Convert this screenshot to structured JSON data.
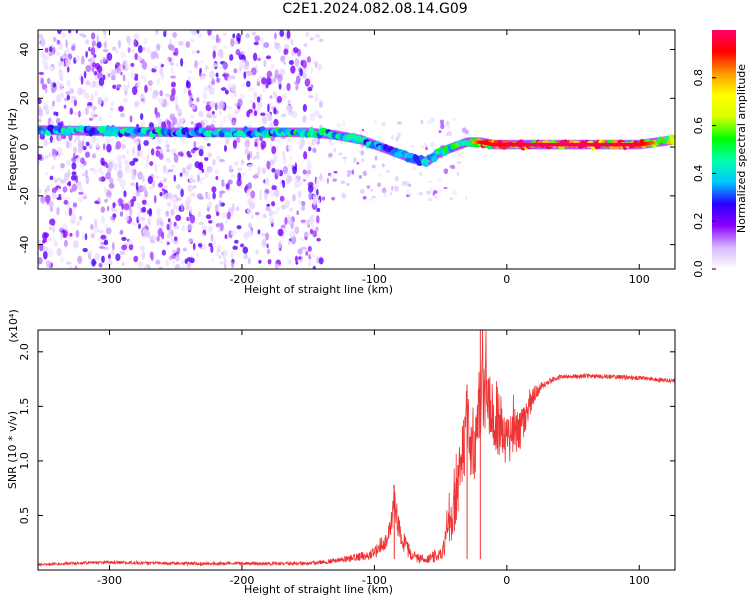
{
  "title": "C2E1.2024.082.08.14.G09",
  "chart_data": [
    {
      "type": "heatmap",
      "xlabel": "Height of straight line (km)",
      "ylabel": "Frequency (Hz)",
      "xlim": [
        -354,
        127
      ],
      "ylim": [
        -50,
        48
      ],
      "xticks": [
        -300,
        -200,
        -100,
        0,
        100
      ],
      "yticks": [
        -40,
        -20,
        0,
        20,
        40
      ],
      "grid": false,
      "colorbar": {
        "label": "Normalized spectral amplitude",
        "range": [
          0,
          1
        ],
        "ticks": [
          "0.0",
          "0.2",
          "0.4",
          "0.6",
          "0.8"
        ],
        "colors": [
          "#ffffff",
          "#d7b8ff",
          "#8a00ff",
          "#2a00ff",
          "#00c8ff",
          "#00ffaa",
          "#00ff00",
          "#d8ff00",
          "#ffff00",
          "#ff9900",
          "#ff0000",
          "#ff0066"
        ]
      },
      "ridge": {
        "x": [
          -354,
          -300,
          -250,
          -200,
          -150,
          -130,
          -110,
          -90,
          -80,
          -70,
          -60,
          -50,
          -40,
          -30,
          -20,
          -10,
          0,
          20,
          50,
          100,
          127
        ],
        "frequency": [
          7,
          6.5,
          6,
          6,
          6,
          5,
          3,
          -1,
          -3,
          -5,
          -6,
          -2,
          0,
          2,
          2,
          1,
          1,
          1,
          1,
          1,
          3
        ],
        "amplitude": [
          0.45,
          0.45,
          0.45,
          0.45,
          0.5,
          0.5,
          0.45,
          0.35,
          0.4,
          0.45,
          0.5,
          0.55,
          0.6,
          0.7,
          0.9,
          0.95,
          0.95,
          0.98,
          1.0,
          0.95,
          0.7
        ]
      },
      "scatter_extent": {
        "x_from": -354,
        "x_to": -140,
        "frequency_range": [
          -50,
          48
        ]
      }
    },
    {
      "type": "line",
      "xlabel": "Height of straight line (km)",
      "ylabel": "SNR (10 * v/v)",
      "multiplier": "(x10⁴)",
      "xlim": [
        -354,
        127
      ],
      "ylim": [
        0,
        2.2
      ],
      "xticks": [
        -300,
        -200,
        -100,
        0,
        100
      ],
      "yticks": [
        0.5,
        1.0,
        1.5,
        2.0
      ],
      "color": "#ee3333",
      "series": [
        {
          "x": [
            -354,
            -300,
            -250,
            -200,
            -150,
            -120,
            -100,
            -90,
            -85,
            -80,
            -75,
            -70,
            -60,
            -50,
            -40,
            -35,
            -30,
            -25,
            -20,
            -15,
            -10,
            -5,
            0,
            10,
            20,
            30,
            40,
            60,
            80,
            100,
            127
          ],
          "values": [
            0.05,
            0.07,
            0.06,
            0.06,
            0.06,
            0.1,
            0.15,
            0.3,
            0.6,
            0.3,
            0.2,
            0.12,
            0.1,
            0.15,
            0.5,
            0.9,
            1.3,
            1.1,
            1.6,
            1.5,
            1.4,
            1.3,
            1.2,
            1.3,
            1.6,
            1.72,
            1.77,
            1.78,
            1.77,
            1.76,
            1.73
          ],
          "noise": [
            0.01,
            0.015,
            0.015,
            0.015,
            0.015,
            0.03,
            0.05,
            0.1,
            0.15,
            0.1,
            0.08,
            0.05,
            0.04,
            0.08,
            0.25,
            0.35,
            0.4,
            0.4,
            0.4,
            0.35,
            0.3,
            0.3,
            0.25,
            0.2,
            0.08,
            0.03,
            0.02,
            0.02,
            0.02,
            0.02,
            0.02
          ],
          "peaks": [
            {
              "x": -20,
              "value": 2.2
            },
            {
              "x": -30,
              "value": 1.7
            },
            {
              "x": -85,
              "value": 0.78
            }
          ]
        }
      ]
    }
  ]
}
